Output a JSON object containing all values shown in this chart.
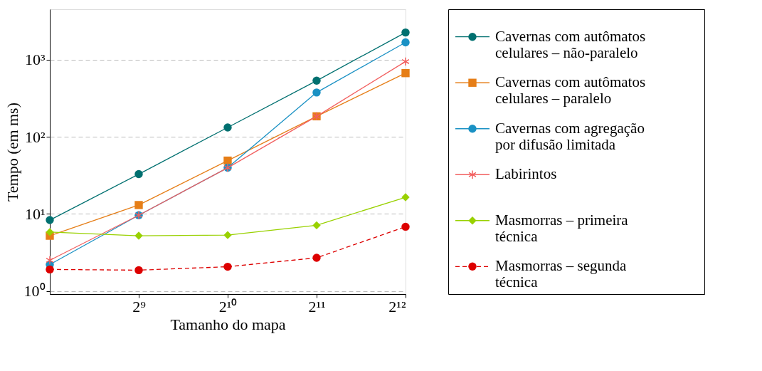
{
  "chart_data": {
    "type": "line",
    "xlabel": "Tamanho do mapa",
    "ylabel": "Tempo (em ms)",
    "x": [
      256,
      512,
      1024,
      2048,
      4096
    ],
    "xlim": [
      256,
      4096
    ],
    "xticks": [
      {
        "value": 512,
        "label": "2⁹"
      },
      {
        "value": 1024,
        "label": "2¹⁰"
      },
      {
        "value": 2048,
        "label": "2¹¹"
      },
      {
        "value": 4096,
        "label": "2¹²"
      }
    ],
    "ylim": [
      0.91,
      4500
    ],
    "yticks": [
      {
        "value": 1,
        "label": "10⁰"
      },
      {
        "value": 10,
        "label": "10¹"
      },
      {
        "value": 100,
        "label": "10²"
      },
      {
        "value": 1000,
        "label": "10³"
      }
    ],
    "log": "xy",
    "grid": "y",
    "legend": "right",
    "series": [
      {
        "name": "Cavernas com autômatos celulares – não-paralelo",
        "color": "#007070",
        "marker": "circle",
        "line_style": "solid",
        "values": [
          8.3,
          32.7,
          132,
          533,
          2250
        ]
      },
      {
        "name": "Cavernas com autômatos celulares – paralelo",
        "color": "#e67e17",
        "marker": "square",
        "line_style": "solid",
        "values": [
          5.2,
          13,
          49,
          184,
          668
        ]
      },
      {
        "name": "Cavernas com agregação por difusão limitada",
        "color": "#1a91c4",
        "marker": "circle",
        "line_style": "solid",
        "values": [
          2.2,
          9.6,
          39.6,
          375,
          1675
        ]
      },
      {
        "name": "Labirintos",
        "color": "#f26060",
        "marker": "cross",
        "line_style": "solid",
        "values": [
          2.5,
          9.6,
          39.6,
          184,
          945
        ]
      },
      {
        "name": "Masmorras – primeira técnica",
        "color": "#99d100",
        "marker": "diamond",
        "line_style": "solid",
        "values": [
          5.8,
          5.2,
          5.3,
          7.1,
          16.4
        ]
      },
      {
        "name": "Masmorras – segunda técnica",
        "color": "#dd0000",
        "marker": "circle",
        "line_style": "dashed",
        "values": [
          1.9,
          1.86,
          2.06,
          2.69,
          6.8
        ]
      }
    ]
  }
}
